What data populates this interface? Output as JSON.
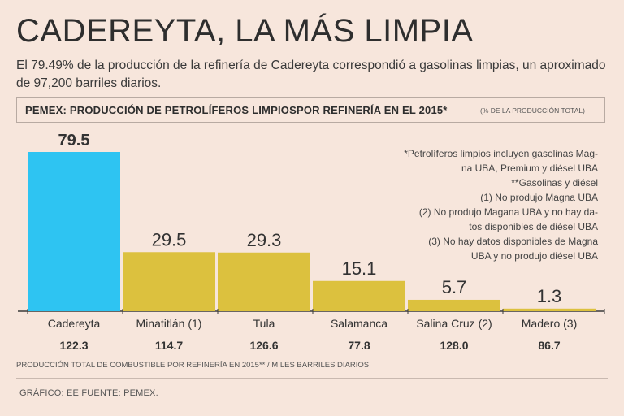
{
  "header": {
    "title": "CADEREYTA, LA MÁS LIMPIA",
    "subtitle": "El 79.49% de la producción de la refinería de Cadereyta correspondió a gasolinas limpias, un aproximado de 97,200 barriles diarios."
  },
  "box": {
    "title": "PEMEX: PRODUCCIÓN DE PETROLÍFEROS LIMPIOSPOR REFINERÍA EN EL 2015*",
    "unit": "(% DE LA PRODUCCIÓN TOTAL)"
  },
  "notes": [
    "*Petrolíferos limpios incluyen gasolinas Mag-",
    "na UBA, Premium y diésel UBA",
    "**Gasolinas y diésel",
    "(1) No produjo Magna UBA",
    "(2) No produjo Magana UBA y no hay da-",
    "tos disponibles de diésel UBA",
    "(3) No hay datos disponibles de Magna",
    "UBA y no produjo diésel UBA"
  ],
  "chart_data": {
    "type": "bar",
    "title": "PEMEX: PRODUCCIÓN DE PETROLÍFEROS LIMPIOSPOR REFINERÍA EN EL 2015*",
    "ylabel": "% de la producción total",
    "ylim": [
      0,
      80
    ],
    "categories": [
      "Cadereyta",
      "Minatitlán (1)",
      "Tula",
      "Salamanca",
      "Salina Cruz (2)",
      "Madero (3)"
    ],
    "values": [
      79.5,
      29.5,
      29.3,
      15.1,
      5.7,
      1.3
    ],
    "value_labels": [
      "79.5",
      "29.5",
      "29.3",
      "15.1",
      "5.7",
      "1.3"
    ],
    "total_production": [
      "122.3",
      "114.7",
      "126.6",
      "77.8",
      "128.0",
      "86.7"
    ],
    "total_production_label": "PRODUCCIÓN TOTAL DE COMBUSTIBLE POR REFINERÍA EN 2015** / MILES BARRILES DIARIOS",
    "colors": {
      "highlight": "#2ec4f2",
      "default": "#dcc13e"
    }
  },
  "credit": "GRÁFICO: EE  FUENTE: PEMEX."
}
